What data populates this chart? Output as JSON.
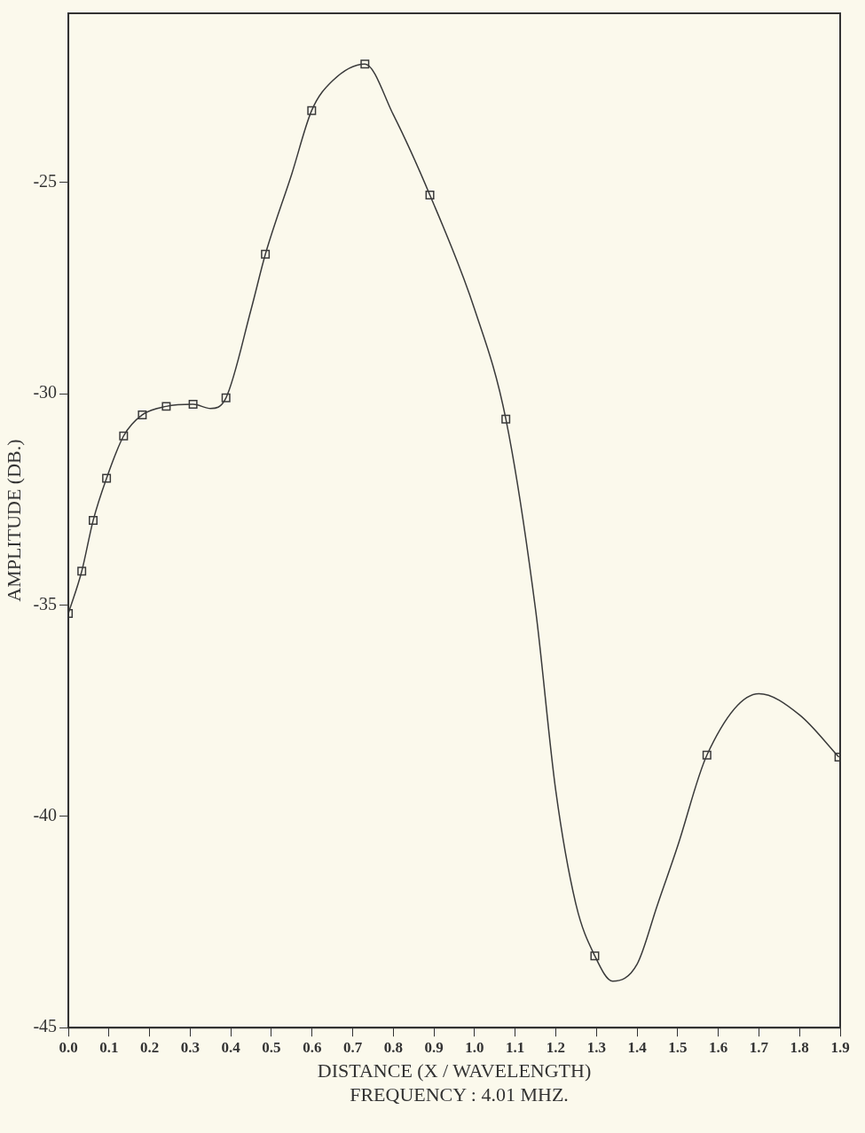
{
  "chart_data": {
    "type": "line",
    "xlabel": "DISTANCE (X / WAVELENGTH)",
    "ylabel": "AMPLITUDE (DB.)",
    "annotations": [
      "FREQUENCY : 4.01 MHZ."
    ],
    "xlim": [
      0,
      1.9
    ],
    "ylim": [
      -45,
      -21
    ],
    "xticks": [
      {
        "value": 0,
        "label": "0.0"
      },
      0.1,
      0.2,
      0.3,
      0.4,
      0.5,
      0.6,
      0.7,
      0.8,
      0.9,
      {
        "value": 1,
        "label": "1.0"
      },
      1.1,
      1.2,
      1.3,
      1.4,
      1.5,
      1.6,
      1.7,
      1.8,
      1.9
    ],
    "yticks": [
      -45,
      -40,
      -35,
      -30,
      -25
    ],
    "grid": false,
    "legend": false,
    "series": [
      {
        "color": "#3a3a3a",
        "marker": "none",
        "x": [
          0,
          0.033,
          0.061,
          0.094,
          0.136,
          0.182,
          0.241,
          0.307,
          0.35,
          0.388,
          0.45,
          0.485,
          0.55,
          0.599,
          0.65,
          0.73,
          0.8,
          0.89,
          1.0,
          1.077,
          1.15,
          1.2,
          1.25,
          1.296,
          1.34,
          1.4,
          1.45,
          1.5,
          1.572,
          1.7,
          1.8,
          1.897
        ],
        "values": [
          -35.2,
          -34.2,
          -33.0,
          -32.0,
          -31.0,
          -30.5,
          -30.3,
          -30.25,
          -30.35,
          -30.1,
          -28.0,
          -26.7,
          -24.8,
          -23.3,
          -22.6,
          -22.2,
          -23.4,
          -25.3,
          -28.0,
          -30.6,
          -35.1,
          -39.4,
          -42.1,
          -43.3,
          -43.9,
          -43.5,
          -42.1,
          -40.7,
          -38.55,
          -37.1,
          -37.6,
          -38.6
        ]
      },
      {
        "type": "scatter",
        "color": "#3a3a3a",
        "marker": "square",
        "x": [
          0,
          0.033,
          0.061,
          0.094,
          0.136,
          0.182,
          0.241,
          0.307,
          0.388,
          0.485,
          0.599,
          0.73,
          0.89,
          1.077,
          1.296,
          1.572,
          1.897
        ],
        "values": [
          -35.2,
          -34.2,
          -33.0,
          -32.0,
          -31.0,
          -30.5,
          -30.3,
          -30.25,
          -30.1,
          -26.7,
          -23.3,
          -22.2,
          -25.3,
          -30.6,
          -43.3,
          -38.55,
          -38.6
        ]
      }
    ]
  }
}
